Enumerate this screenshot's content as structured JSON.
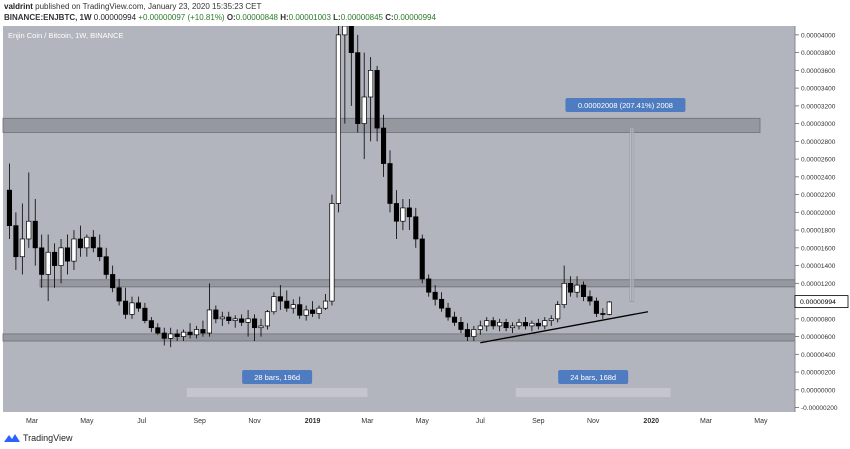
{
  "header": {
    "author": "valdrint",
    "published_text": "published on TradingView.com, January 23, 2020 15:35:23 CET",
    "symbol": "BINANCE:ENJBTC, 1W",
    "last": "0.00000994",
    "change": "+0.00000097 (+10.81%)",
    "o_label": "O:",
    "o_value": "0.00000848",
    "h_label": "H:",
    "h_value": "0.00001003",
    "l_label": "L:",
    "l_value": "0.00000845",
    "c_label": "C:",
    "c_value": "0.00000994"
  },
  "footer": {
    "logo_text": "TradingView"
  },
  "colors": {
    "background": "#b2b5be",
    "candle_up": "#ffffff",
    "candle_down": "#000000",
    "zone": "#8c8f96",
    "label_box": "#4f7cc0",
    "price_tag": "#ffffff"
  },
  "chart_data": {
    "type": "candlestick",
    "title": "Enjin Coin / Bitcoin, 1W, BINANCE",
    "x_ticks": [
      "Mar",
      "May",
      "Jul",
      "Sep",
      "Nov",
      "2019",
      "Mar",
      "May",
      "Jul",
      "Sep",
      "Nov",
      "2020",
      "Mar",
      "May"
    ],
    "y_ticks": [
      "0.00004000",
      "0.00003800",
      "0.00003600",
      "0.00003400",
      "0.00003200",
      "0.00003000",
      "0.00002800",
      "0.00002600",
      "0.00002400",
      "0.00002200",
      "0.00002000",
      "0.00001800",
      "0.00001600",
      "0.00001400",
      "0.00001200",
      "0.00001000",
      "0.00000800",
      "0.00000600",
      "0.00000400",
      "0.00000200",
      "0.00000000",
      "-0.00000200"
    ],
    "ylim": [
      -2.5e-06,
      4.1e-05
    ],
    "current_price_label": "0.00000994",
    "annotations": {
      "measure_label": "0.00002008 (207.41%) 2008",
      "range1_label": "28 bars, 196d",
      "range2_label": "24 bars, 168d"
    },
    "zones": [
      {
        "low": 2.9e-05,
        "high": 3.06e-05
      },
      {
        "low": 1.16e-05,
        "high": 1.24e-05
      },
      {
        "low": 5.5e-06,
        "high": 6.3e-06
      }
    ],
    "trendline": {
      "from_week": 74,
      "from_price": 5.3e-06,
      "to_week": 100,
      "to_price": 8.8e-06
    },
    "candles": [
      {
        "w": 1,
        "o": 2.25e-05,
        "h": 2.55e-05,
        "l": 1.7e-05,
        "c": 1.85e-05
      },
      {
        "w": 2,
        "o": 1.85e-05,
        "h": 2e-05,
        "l": 1.35e-05,
        "c": 1.5e-05
      },
      {
        "w": 3,
        "o": 1.5e-05,
        "h": 2.1e-05,
        "l": 1.3e-05,
        "c": 1.7e-05
      },
      {
        "w": 4,
        "o": 1.7e-05,
        "h": 2.45e-05,
        "l": 1.6e-05,
        "c": 1.9e-05
      },
      {
        "w": 5,
        "o": 1.9e-05,
        "h": 2.15e-05,
        "l": 1.4e-05,
        "c": 1.6e-05
      },
      {
        "w": 6,
        "o": 1.6e-05,
        "h": 1.75e-05,
        "l": 1.15e-05,
        "c": 1.3e-05
      },
      {
        "w": 7,
        "o": 1.3e-05,
        "h": 1.75e-05,
        "l": 1e-05,
        "c": 1.55e-05
      },
      {
        "w": 8,
        "o": 1.55e-05,
        "h": 1.65e-05,
        "l": 1.15e-05,
        "c": 1.4e-05
      },
      {
        "w": 9,
        "o": 1.4e-05,
        "h": 1.7e-05,
        "l": 1.2e-05,
        "c": 1.6e-05
      },
      {
        "w": 10,
        "o": 1.6e-05,
        "h": 1.75e-05,
        "l": 1.3e-05,
        "c": 1.45e-05
      },
      {
        "w": 11,
        "o": 1.45e-05,
        "h": 1.8e-05,
        "l": 1.35e-05,
        "c": 1.7e-05
      },
      {
        "w": 12,
        "o": 1.7e-05,
        "h": 1.85e-05,
        "l": 1.5e-05,
        "c": 1.6e-05
      },
      {
        "w": 13,
        "o": 1.6e-05,
        "h": 1.75e-05,
        "l": 1.5e-05,
        "c": 1.72e-05
      },
      {
        "w": 14,
        "o": 1.72e-05,
        "h": 1.8e-05,
        "l": 1.55e-05,
        "c": 1.6e-05
      },
      {
        "w": 15,
        "o": 1.6e-05,
        "h": 1.75e-05,
        "l": 1.45e-05,
        "c": 1.5e-05
      },
      {
        "w": 16,
        "o": 1.5e-05,
        "h": 1.6e-05,
        "l": 1.25e-05,
        "c": 1.3e-05
      },
      {
        "w": 17,
        "o": 1.3e-05,
        "h": 1.4e-05,
        "l": 1.1e-05,
        "c": 1.15e-05
      },
      {
        "w": 18,
        "o": 1.15e-05,
        "h": 1.25e-05,
        "l": 9.5e-06,
        "c": 1e-05
      },
      {
        "w": 19,
        "o": 1e-05,
        "h": 1.15e-05,
        "l": 8e-06,
        "c": 8.5e-06
      },
      {
        "w": 20,
        "o": 8.5e-06,
        "h": 1.05e-05,
        "l": 8e-06,
        "c": 9.8e-06
      },
      {
        "w": 21,
        "o": 9.8e-06,
        "h": 1.05e-05,
        "l": 8.8e-06,
        "c": 9.2e-06
      },
      {
        "w": 22,
        "o": 9.2e-06,
        "h": 9.8e-06,
        "l": 7.5e-06,
        "c": 7.8e-06
      },
      {
        "w": 23,
        "o": 7.8e-06,
        "h": 8.2e-06,
        "l": 6.5e-06,
        "c": 7e-06
      },
      {
        "w": 24,
        "o": 7e-06,
        "h": 7.5e-06,
        "l": 6.2e-06,
        "c": 6.4e-06
      },
      {
        "w": 25,
        "o": 6.4e-06,
        "h": 7e-06,
        "l": 5e-06,
        "c": 5.8e-06
      },
      {
        "w": 26,
        "o": 5.8e-06,
        "h": 7e-06,
        "l": 4.8e-06,
        "c": 6.3e-06
      },
      {
        "w": 27,
        "o": 6.3e-06,
        "h": 6.8e-06,
        "l": 5.5e-06,
        "c": 6e-06
      },
      {
        "w": 28,
        "o": 6e-06,
        "h": 6.8e-06,
        "l": 5.5e-06,
        "c": 6.5e-06
      },
      {
        "w": 29,
        "o": 6.5e-06,
        "h": 7.5e-06,
        "l": 5.8e-06,
        "c": 6.2e-06
      },
      {
        "w": 30,
        "o": 6.2e-06,
        "h": 7.2e-06,
        "l": 5.8e-06,
        "c": 6.8e-06
      },
      {
        "w": 31,
        "o": 6.8e-06,
        "h": 7.8e-06,
        "l": 6e-06,
        "c": 6.4e-06
      },
      {
        "w": 32,
        "o": 6.4e-06,
        "h": 1.2e-05,
        "l": 6e-06,
        "c": 9e-06
      },
      {
        "w": 33,
        "o": 9e-06,
        "h": 9.5e-06,
        "l": 7.5e-06,
        "c": 8e-06
      },
      {
        "w": 34,
        "o": 8e-06,
        "h": 8.8e-06,
        "l": 7.2e-06,
        "c": 8.2e-06
      },
      {
        "w": 35,
        "o": 8.2e-06,
        "h": 8.8e-06,
        "l": 7.4e-06,
        "c": 7.8e-06
      },
      {
        "w": 36,
        "o": 7.8e-06,
        "h": 8.4e-06,
        "l": 7e-06,
        "c": 8e-06
      },
      {
        "w": 37,
        "o": 8e-06,
        "h": 8.5e-06,
        "l": 7.2e-06,
        "c": 7.6e-06
      },
      {
        "w": 38,
        "o": 7.6e-06,
        "h": 9e-06,
        "l": 6e-06,
        "c": 8e-06
      },
      {
        "w": 39,
        "o": 8e-06,
        "h": 8.5e-06,
        "l": 5.5e-06,
        "c": 7e-06
      },
      {
        "w": 40,
        "o": 7e-06,
        "h": 8e-06,
        "l": 6e-06,
        "c": 7.2e-06
      },
      {
        "w": 41,
        "o": 7.2e-06,
        "h": 9e-06,
        "l": 6.8e-06,
        "c": 8.8e-06
      },
      {
        "w": 42,
        "o": 8.8e-06,
        "h": 1.1e-05,
        "l": 8.5e-06,
        "c": 1.05e-05
      },
      {
        "w": 43,
        "o": 1.05e-05,
        "h": 1.18e-05,
        "l": 9e-06,
        "c": 1e-05
      },
      {
        "w": 44,
        "o": 1e-05,
        "h": 1.12e-05,
        "l": 8.8e-06,
        "c": 9.2e-06
      },
      {
        "w": 45,
        "o": 9.2e-06,
        "h": 1.02e-05,
        "l": 8.6e-06,
        "c": 9.6e-06
      },
      {
        "w": 46,
        "o": 9.6e-06,
        "h": 1.05e-05,
        "l": 8e-06,
        "c": 8.4e-06
      },
      {
        "w": 47,
        "o": 8.4e-06,
        "h": 9.5e-06,
        "l": 7.8e-06,
        "c": 9e-06
      },
      {
        "w": 48,
        "o": 9e-06,
        "h": 1e-05,
        "l": 8.2e-06,
        "c": 8.6e-06
      },
      {
        "w": 49,
        "o": 8.6e-06,
        "h": 9.5e-06,
        "l": 8e-06,
        "c": 9.2e-06
      },
      {
        "w": 50,
        "o": 9.2e-06,
        "h": 1.08e-05,
        "l": 9e-06,
        "c": 1e-05
      },
      {
        "w": 51,
        "o": 1e-05,
        "h": 2.2e-05,
        "l": 9.5e-06,
        "c": 2.1e-05
      },
      {
        "w": 52,
        "o": 2.1e-05,
        "h": 4.1e-05,
        "l": 2e-05,
        "c": 4e-05
      },
      {
        "w": 53,
        "o": 4e-05,
        "h": 4.1e-05,
        "l": 3e-05,
        "c": 4.1e-05
      },
      {
        "w": 54,
        "o": 4.1e-05,
        "h": 4.1e-05,
        "l": 3.2e-05,
        "c": 3.8e-05
      },
      {
        "w": 55,
        "o": 3.8e-05,
        "h": 4e-05,
        "l": 2.9e-05,
        "c": 3e-05
      },
      {
        "w": 56,
        "o": 3e-05,
        "h": 3.8e-05,
        "l": 2.6e-05,
        "c": 3.3e-05
      },
      {
        "w": 57,
        "o": 3.3e-05,
        "h": 3.75e-05,
        "l": 2.8e-05,
        "c": 3.6e-05
      },
      {
        "w": 58,
        "o": 3.6e-05,
        "h": 3.65e-05,
        "l": 2.8e-05,
        "c": 2.95e-05
      },
      {
        "w": 59,
        "o": 2.95e-05,
        "h": 3.1e-05,
        "l": 2.4e-05,
        "c": 2.55e-05
      },
      {
        "w": 60,
        "o": 2.55e-05,
        "h": 2.7e-05,
        "l": 2e-05,
        "c": 2.1e-05
      },
      {
        "w": 61,
        "o": 2.1e-05,
        "h": 2.25e-05,
        "l": 1.7e-05,
        "c": 1.9e-05
      },
      {
        "w": 62,
        "o": 1.9e-05,
        "h": 2.15e-05,
        "l": 1.8e-05,
        "c": 2.05e-05
      },
      {
        "w": 63,
        "o": 2.05e-05,
        "h": 2.15e-05,
        "l": 1.8e-05,
        "c": 1.95e-05
      },
      {
        "w": 64,
        "o": 1.95e-05,
        "h": 2.05e-05,
        "l": 1.6e-05,
        "c": 1.7e-05
      },
      {
        "w": 65,
        "o": 1.7e-05,
        "h": 1.75e-05,
        "l": 1.2e-05,
        "c": 1.25e-05
      },
      {
        "w": 66,
        "o": 1.25e-05,
        "h": 1.3e-05,
        "l": 1.05e-05,
        "c": 1.1e-05
      },
      {
        "w": 67,
        "o": 1.1e-05,
        "h": 1.18e-05,
        "l": 9.5e-06,
        "c": 1.02e-05
      },
      {
        "w": 68,
        "o": 1.02e-05,
        "h": 1.1e-05,
        "l": 8.8e-06,
        "c": 9.2e-06
      },
      {
        "w": 69,
        "o": 9.2e-06,
        "h": 9.8e-06,
        "l": 7.8e-06,
        "c": 8.2e-06
      },
      {
        "w": 70,
        "o": 8.2e-06,
        "h": 8.8e-06,
        "l": 7.2e-06,
        "c": 7.6e-06
      },
      {
        "w": 71,
        "o": 7.6e-06,
        "h": 8.2e-06,
        "l": 6.4e-06,
        "c": 6.8e-06
      },
      {
        "w": 72,
        "o": 6.8e-06,
        "h": 7.5e-06,
        "l": 5.5e-06,
        "c": 6e-06
      },
      {
        "w": 73,
        "o": 6e-06,
        "h": 7.2e-06,
        "l": 5.5e-06,
        "c": 6.8e-06
      },
      {
        "w": 74,
        "o": 6.8e-06,
        "h": 7.8e-06,
        "l": 6.2e-06,
        "c": 7.2e-06
      },
      {
        "w": 75,
        "o": 7.2e-06,
        "h": 8.2e-06,
        "l": 6.6e-06,
        "c": 7.8e-06
      },
      {
        "w": 76,
        "o": 7.8e-06,
        "h": 8.2e-06,
        "l": 6.8e-06,
        "c": 7.2e-06
      },
      {
        "w": 77,
        "o": 7.2e-06,
        "h": 8e-06,
        "l": 6.6e-06,
        "c": 7.6e-06
      },
      {
        "w": 78,
        "o": 7.6e-06,
        "h": 8e-06,
        "l": 6.6e-06,
        "c": 7e-06
      },
      {
        "w": 79,
        "o": 7e-06,
        "h": 7.6e-06,
        "l": 6.4e-06,
        "c": 7.2e-06
      },
      {
        "w": 80,
        "o": 7.2e-06,
        "h": 8e-06,
        "l": 6.8e-06,
        "c": 7.6e-06
      },
      {
        "w": 81,
        "o": 7.6e-06,
        "h": 8.2e-06,
        "l": 6.8e-06,
        "c": 7.2e-06
      },
      {
        "w": 82,
        "o": 7.2e-06,
        "h": 7.8e-06,
        "l": 6.6e-06,
        "c": 7.5e-06
      },
      {
        "w": 83,
        "o": 7.5e-06,
        "h": 8e-06,
        "l": 6.8e-06,
        "c": 7.2e-06
      },
      {
        "w": 84,
        "o": 7.2e-06,
        "h": 8.2e-06,
        "l": 6.8e-06,
        "c": 7.8e-06
      },
      {
        "w": 85,
        "o": 7.8e-06,
        "h": 8.4e-06,
        "l": 7.2e-06,
        "c": 8e-06
      },
      {
        "w": 86,
        "o": 8e-06,
        "h": 1e-05,
        "l": 7.6e-06,
        "c": 9.6e-06
      },
      {
        "w": 87,
        "o": 9.6e-06,
        "h": 1.4e-05,
        "l": 9.2e-06,
        "c": 1.2e-05
      },
      {
        "w": 88,
        "o": 1.2e-05,
        "h": 1.28e-05,
        "l": 1.05e-05,
        "c": 1.1e-05
      },
      {
        "w": 89,
        "o": 1.1e-05,
        "h": 1.28e-05,
        "l": 1.04e-05,
        "c": 1.18e-05
      },
      {
        "w": 90,
        "o": 1.18e-05,
        "h": 1.22e-05,
        "l": 1e-05,
        "c": 1.05e-05
      },
      {
        "w": 91,
        "o": 1.05e-05,
        "h": 1.12e-05,
        "l": 9.5e-06,
        "c": 1e-05
      },
      {
        "w": 92,
        "o": 1e-05,
        "h": 1.04e-05,
        "l": 8.2e-06,
        "c": 8.6e-06
      },
      {
        "w": 93,
        "o": 8.6e-06,
        "h": 9.2e-06,
        "l": 8e-06,
        "c": 8.5e-06
      },
      {
        "w": 94,
        "o": 8.5e-06,
        "h": 1e-05,
        "l": 8.4e-06,
        "c": 9.9e-06
      }
    ]
  }
}
